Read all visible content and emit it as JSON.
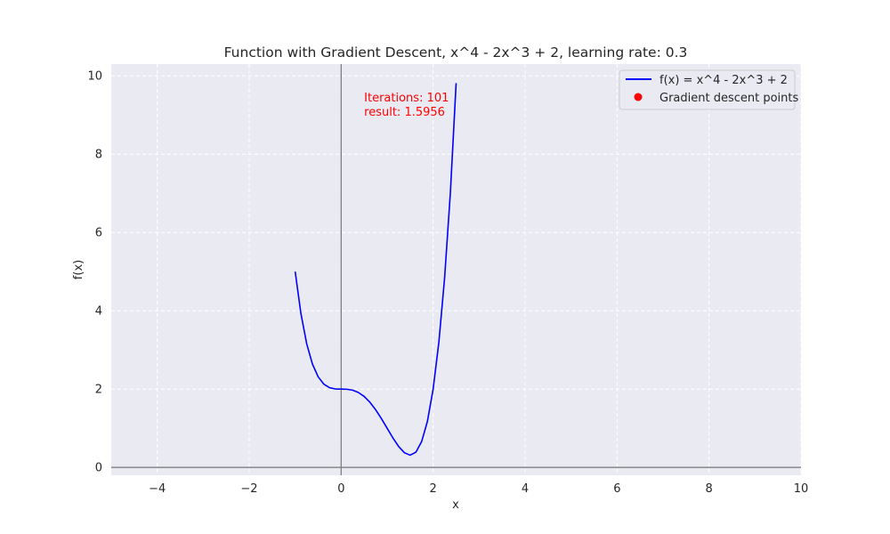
{
  "chart_data": {
    "type": "line",
    "title": "Function with Gradient Descent,  x^4 - 2x^3 + 2, learning rate: 0.3",
    "xlabel": "x",
    "ylabel": "f(x)",
    "xlim": [
      -5,
      10
    ],
    "ylim": [
      -0.2,
      10.3
    ],
    "xticks": [
      -4,
      -2,
      0,
      2,
      4,
      6,
      8,
      10
    ],
    "yticks": [
      0,
      2,
      4,
      6,
      8,
      10
    ],
    "xtick_labels": [
      "−4",
      "−2",
      "0",
      "2",
      "4",
      "6",
      "8",
      "10"
    ],
    "ytick_labels": [
      "0",
      "2",
      "4",
      "6",
      "8",
      "10"
    ],
    "grid": true,
    "legend_position": "top-right",
    "series": [
      {
        "name": "f(x) =  x^4 - 2x^3 + 2",
        "kind": "line",
        "color": "#0000ff",
        "x": [
          -1.0,
          -0.875,
          -0.75,
          -0.625,
          -0.5,
          -0.375,
          -0.25,
          -0.125,
          0.0,
          0.125,
          0.25,
          0.375,
          0.5,
          0.625,
          0.75,
          0.875,
          1.0,
          1.125,
          1.25,
          1.375,
          1.5,
          1.625,
          1.75,
          1.875,
          2.0,
          2.125,
          2.25,
          2.375,
          2.5
        ],
        "y": [
          5.0,
          3.926,
          3.16,
          2.641,
          2.313,
          2.125,
          2.035,
          2.004,
          2.0,
          1.996,
          1.973,
          1.914,
          1.813,
          1.664,
          1.473,
          1.247,
          1.0,
          0.754,
          0.535,
          0.375,
          0.313,
          0.389,
          0.66,
          1.175,
          2.0,
          3.201,
          4.848,
          7.016,
          9.813
        ]
      },
      {
        "name": "Gradient descent points",
        "kind": "scatter",
        "color": "#ff0000",
        "x": [],
        "y": []
      }
    ],
    "annotation": {
      "lines": [
        "Iterations: 101",
        "result: 1.5956"
      ],
      "x": 0.5,
      "y": 9.3,
      "color": "#ff0000"
    }
  },
  "colors": {
    "plot_background": "#eaeaf2",
    "grid": "#ffffff",
    "axis_line": "#808080",
    "line": "#0000ff",
    "points": "#ff0000",
    "annotation": "#ff0000"
  }
}
